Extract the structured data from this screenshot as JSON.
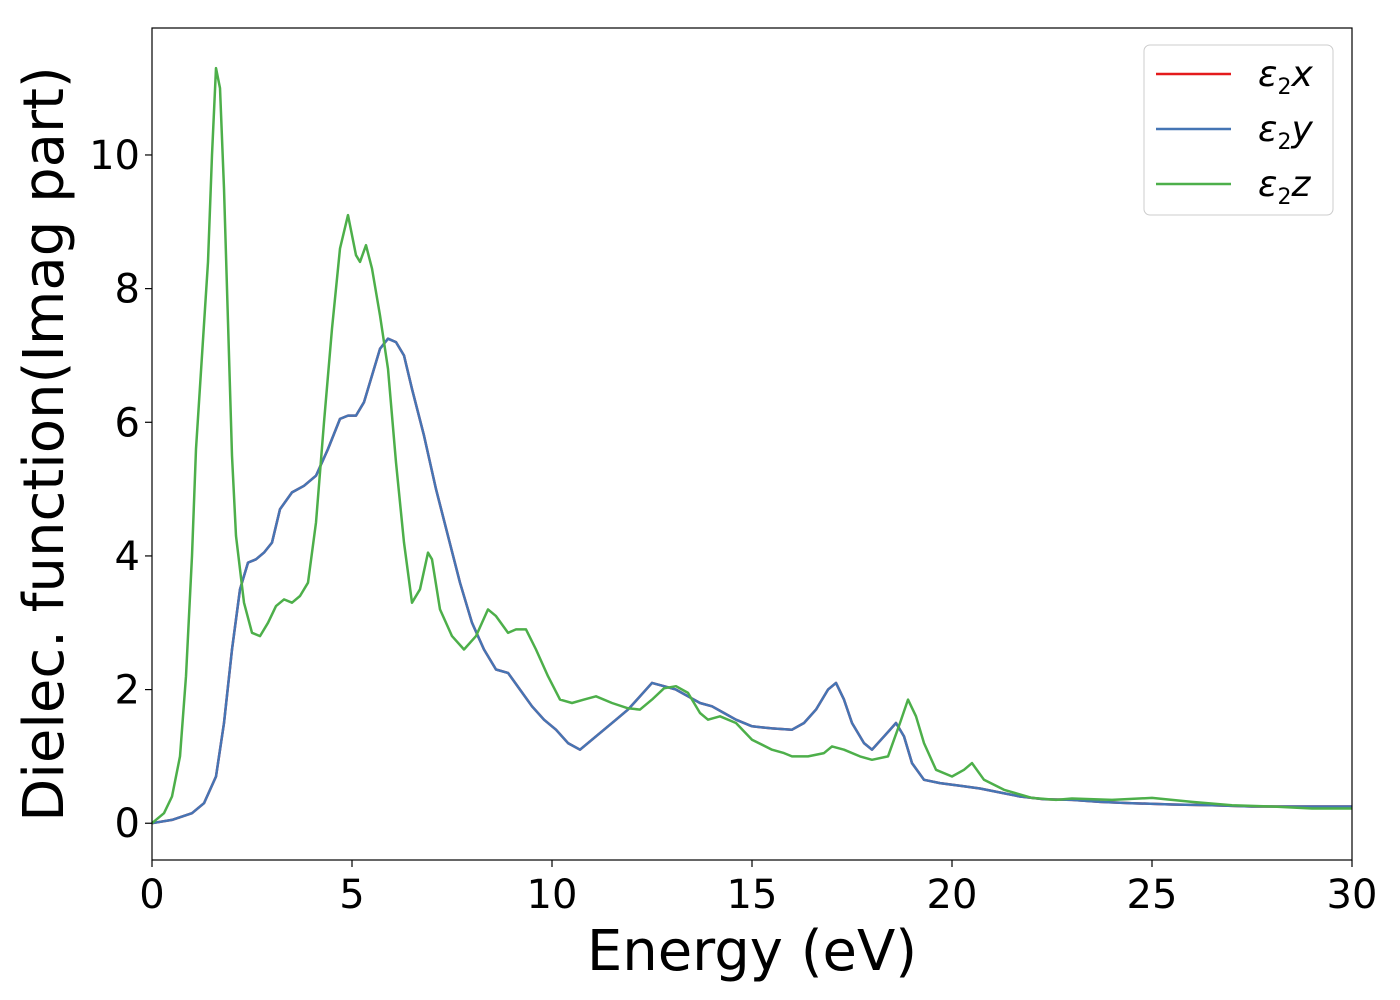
{
  "chart_data": {
    "type": "line",
    "xlabel": "Energy (eV)",
    "ylabel": "Dielec. function(Imag part)",
    "xlim": [
      0,
      30
    ],
    "ylim": [
      -0.55,
      11.9
    ],
    "xticks": [
      0,
      5,
      10,
      15,
      20,
      25,
      30
    ],
    "yticks": [
      0,
      2,
      4,
      6,
      8,
      10
    ],
    "xtick_labels": [
      "0",
      "5",
      "10",
      "15",
      "20",
      "25",
      "30"
    ],
    "ytick_labels": [
      "0",
      "2",
      "4",
      "6",
      "8",
      "10"
    ],
    "grid": false,
    "legend_position": "top-right",
    "series": [
      {
        "name": "ε₂x",
        "legend": {
          "base": "ε",
          "sub": "2",
          "suffix": "x"
        },
        "color": "#e41a1c",
        "points": [
          [
            0,
            0
          ],
          [
            0.5,
            0.05
          ],
          [
            1,
            0.15
          ],
          [
            1.3,
            0.3
          ],
          [
            1.6,
            0.7
          ],
          [
            1.8,
            1.5
          ],
          [
            2,
            2.6
          ],
          [
            2.2,
            3.5
          ],
          [
            2.4,
            3.9
          ],
          [
            2.6,
            3.95
          ],
          [
            2.8,
            4.05
          ],
          [
            3,
            4.2
          ],
          [
            3.2,
            4.7
          ],
          [
            3.5,
            4.95
          ],
          [
            3.8,
            5.05
          ],
          [
            4.1,
            5.2
          ],
          [
            4.4,
            5.6
          ],
          [
            4.7,
            6.05
          ],
          [
            4.9,
            6.1
          ],
          [
            5.1,
            6.1
          ],
          [
            5.3,
            6.3
          ],
          [
            5.5,
            6.7
          ],
          [
            5.7,
            7.1
          ],
          [
            5.9,
            7.25
          ],
          [
            6.1,
            7.2
          ],
          [
            6.3,
            7.0
          ],
          [
            6.5,
            6.5
          ],
          [
            6.8,
            5.8
          ],
          [
            7.1,
            5.0
          ],
          [
            7.4,
            4.3
          ],
          [
            7.7,
            3.6
          ],
          [
            8,
            3.0
          ],
          [
            8.3,
            2.6
          ],
          [
            8.6,
            2.3
          ],
          [
            8.9,
            2.25
          ],
          [
            9.2,
            2.0
          ],
          [
            9.5,
            1.75
          ],
          [
            9.8,
            1.55
          ],
          [
            10.1,
            1.4
          ],
          [
            10.4,
            1.2
          ],
          [
            10.7,
            1.1
          ],
          [
            11,
            1.25
          ],
          [
            11.3,
            1.4
          ],
          [
            11.6,
            1.55
          ],
          [
            11.9,
            1.7
          ],
          [
            12.2,
            1.9
          ],
          [
            12.5,
            2.1
          ],
          [
            12.8,
            2.05
          ],
          [
            13.1,
            2.0
          ],
          [
            13.4,
            1.9
          ],
          [
            13.7,
            1.8
          ],
          [
            14,
            1.75
          ],
          [
            14.3,
            1.65
          ],
          [
            14.6,
            1.55
          ],
          [
            15,
            1.45
          ],
          [
            15.5,
            1.42
          ],
          [
            16,
            1.4
          ],
          [
            16.3,
            1.5
          ],
          [
            16.6,
            1.7
          ],
          [
            16.9,
            2.0
          ],
          [
            17.1,
            2.1
          ],
          [
            17.3,
            1.85
          ],
          [
            17.5,
            1.5
          ],
          [
            17.8,
            1.2
          ],
          [
            18,
            1.1
          ],
          [
            18.3,
            1.3
          ],
          [
            18.6,
            1.5
          ],
          [
            18.8,
            1.3
          ],
          [
            19,
            0.9
          ],
          [
            19.3,
            0.65
          ],
          [
            19.7,
            0.6
          ],
          [
            20.2,
            0.56
          ],
          [
            20.7,
            0.52
          ],
          [
            21.2,
            0.46
          ],
          [
            21.7,
            0.4
          ],
          [
            22.3,
            0.36
          ],
          [
            23,
            0.35
          ],
          [
            23.7,
            0.32
          ],
          [
            24.5,
            0.3
          ],
          [
            25.5,
            0.28
          ],
          [
            26.5,
            0.27
          ],
          [
            27.5,
            0.25
          ],
          [
            28.5,
            0.25
          ],
          [
            30,
            0.25
          ]
        ]
      },
      {
        "name": "ε₂y",
        "legend": {
          "base": "ε",
          "sub": "2",
          "suffix": "y"
        },
        "color": "#4575b4",
        "points": [
          [
            0,
            0
          ],
          [
            0.5,
            0.05
          ],
          [
            1,
            0.15
          ],
          [
            1.3,
            0.3
          ],
          [
            1.6,
            0.7
          ],
          [
            1.8,
            1.5
          ],
          [
            2,
            2.6
          ],
          [
            2.2,
            3.5
          ],
          [
            2.4,
            3.9
          ],
          [
            2.6,
            3.95
          ],
          [
            2.8,
            4.05
          ],
          [
            3,
            4.2
          ],
          [
            3.2,
            4.7
          ],
          [
            3.5,
            4.95
          ],
          [
            3.8,
            5.05
          ],
          [
            4.1,
            5.2
          ],
          [
            4.4,
            5.6
          ],
          [
            4.7,
            6.05
          ],
          [
            4.9,
            6.1
          ],
          [
            5.1,
            6.1
          ],
          [
            5.3,
            6.3
          ],
          [
            5.5,
            6.7
          ],
          [
            5.7,
            7.1
          ],
          [
            5.9,
            7.25
          ],
          [
            6.1,
            7.2
          ],
          [
            6.3,
            7.0
          ],
          [
            6.5,
            6.5
          ],
          [
            6.8,
            5.8
          ],
          [
            7.1,
            5.0
          ],
          [
            7.4,
            4.3
          ],
          [
            7.7,
            3.6
          ],
          [
            8,
            3.0
          ],
          [
            8.3,
            2.6
          ],
          [
            8.6,
            2.3
          ],
          [
            8.9,
            2.25
          ],
          [
            9.2,
            2.0
          ],
          [
            9.5,
            1.75
          ],
          [
            9.8,
            1.55
          ],
          [
            10.1,
            1.4
          ],
          [
            10.4,
            1.2
          ],
          [
            10.7,
            1.1
          ],
          [
            11,
            1.25
          ],
          [
            11.3,
            1.4
          ],
          [
            11.6,
            1.55
          ],
          [
            11.9,
            1.7
          ],
          [
            12.2,
            1.9
          ],
          [
            12.5,
            2.1
          ],
          [
            12.8,
            2.05
          ],
          [
            13.1,
            2.0
          ],
          [
            13.4,
            1.9
          ],
          [
            13.7,
            1.8
          ],
          [
            14,
            1.75
          ],
          [
            14.3,
            1.65
          ],
          [
            14.6,
            1.55
          ],
          [
            15,
            1.45
          ],
          [
            15.5,
            1.42
          ],
          [
            16,
            1.4
          ],
          [
            16.3,
            1.5
          ],
          [
            16.6,
            1.7
          ],
          [
            16.9,
            2.0
          ],
          [
            17.1,
            2.1
          ],
          [
            17.3,
            1.85
          ],
          [
            17.5,
            1.5
          ],
          [
            17.8,
            1.2
          ],
          [
            18,
            1.1
          ],
          [
            18.3,
            1.3
          ],
          [
            18.6,
            1.5
          ],
          [
            18.8,
            1.3
          ],
          [
            19,
            0.9
          ],
          [
            19.3,
            0.65
          ],
          [
            19.7,
            0.6
          ],
          [
            20.2,
            0.56
          ],
          [
            20.7,
            0.52
          ],
          [
            21.2,
            0.46
          ],
          [
            21.7,
            0.4
          ],
          [
            22.3,
            0.36
          ],
          [
            23,
            0.35
          ],
          [
            23.7,
            0.32
          ],
          [
            24.5,
            0.3
          ],
          [
            25.5,
            0.28
          ],
          [
            26.5,
            0.27
          ],
          [
            27.5,
            0.25
          ],
          [
            28.5,
            0.25
          ],
          [
            30,
            0.25
          ]
        ]
      },
      {
        "name": "ε₂z",
        "legend": {
          "base": "ε",
          "sub": "2",
          "suffix": "z"
        },
        "color": "#4daf4a",
        "points": [
          [
            0,
            0
          ],
          [
            0.3,
            0.15
          ],
          [
            0.5,
            0.4
          ],
          [
            0.7,
            1.0
          ],
          [
            0.85,
            2.2
          ],
          [
            1.0,
            4.0
          ],
          [
            1.1,
            5.6
          ],
          [
            1.25,
            7.0
          ],
          [
            1.4,
            8.4
          ],
          [
            1.5,
            10.0
          ],
          [
            1.6,
            11.3
          ],
          [
            1.7,
            11.0
          ],
          [
            1.8,
            9.5
          ],
          [
            1.9,
            7.5
          ],
          [
            2.0,
            5.5
          ],
          [
            2.1,
            4.3
          ],
          [
            2.3,
            3.3
          ],
          [
            2.5,
            2.85
          ],
          [
            2.7,
            2.8
          ],
          [
            2.9,
            3.0
          ],
          [
            3.1,
            3.25
          ],
          [
            3.3,
            3.35
          ],
          [
            3.5,
            3.3
          ],
          [
            3.7,
            3.4
          ],
          [
            3.9,
            3.6
          ],
          [
            4.1,
            4.5
          ],
          [
            4.3,
            6.0
          ],
          [
            4.5,
            7.4
          ],
          [
            4.7,
            8.6
          ],
          [
            4.9,
            9.1
          ],
          [
            5.1,
            8.5
          ],
          [
            5.2,
            8.4
          ],
          [
            5.35,
            8.65
          ],
          [
            5.5,
            8.3
          ],
          [
            5.7,
            7.6
          ],
          [
            5.9,
            6.8
          ],
          [
            6.1,
            5.4
          ],
          [
            6.3,
            4.2
          ],
          [
            6.5,
            3.3
          ],
          [
            6.7,
            3.5
          ],
          [
            6.9,
            4.05
          ],
          [
            7.0,
            3.95
          ],
          [
            7.2,
            3.2
          ],
          [
            7.5,
            2.8
          ],
          [
            7.8,
            2.6
          ],
          [
            8.1,
            2.8
          ],
          [
            8.4,
            3.2
          ],
          [
            8.6,
            3.1
          ],
          [
            8.9,
            2.85
          ],
          [
            9.1,
            2.9
          ],
          [
            9.35,
            2.9
          ],
          [
            9.6,
            2.6
          ],
          [
            9.9,
            2.2
          ],
          [
            10.2,
            1.85
          ],
          [
            10.5,
            1.8
          ],
          [
            10.8,
            1.85
          ],
          [
            11.1,
            1.9
          ],
          [
            11.5,
            1.8
          ],
          [
            11.9,
            1.72
          ],
          [
            12.2,
            1.7
          ],
          [
            12.5,
            1.85
          ],
          [
            12.8,
            2.02
          ],
          [
            13.1,
            2.05
          ],
          [
            13.4,
            1.95
          ],
          [
            13.7,
            1.65
          ],
          [
            13.9,
            1.55
          ],
          [
            14.2,
            1.6
          ],
          [
            14.6,
            1.5
          ],
          [
            15,
            1.25
          ],
          [
            15.5,
            1.1
          ],
          [
            15.8,
            1.05
          ],
          [
            16.0,
            1.0
          ],
          [
            16.4,
            1.0
          ],
          [
            16.8,
            1.05
          ],
          [
            17.0,
            1.15
          ],
          [
            17.3,
            1.1
          ],
          [
            17.7,
            1.0
          ],
          [
            18.0,
            0.95
          ],
          [
            18.4,
            1.0
          ],
          [
            18.7,
            1.5
          ],
          [
            18.9,
            1.85
          ],
          [
            19.1,
            1.6
          ],
          [
            19.3,
            1.2
          ],
          [
            19.6,
            0.8
          ],
          [
            20.0,
            0.7
          ],
          [
            20.3,
            0.8
          ],
          [
            20.5,
            0.9
          ],
          [
            20.8,
            0.65
          ],
          [
            21.3,
            0.5
          ],
          [
            22,
            0.38
          ],
          [
            22.6,
            0.35
          ],
          [
            23,
            0.37
          ],
          [
            24,
            0.35
          ],
          [
            25,
            0.38
          ],
          [
            26,
            0.32
          ],
          [
            27,
            0.27
          ],
          [
            28,
            0.25
          ],
          [
            29,
            0.22
          ],
          [
            30,
            0.22
          ]
        ]
      }
    ]
  }
}
